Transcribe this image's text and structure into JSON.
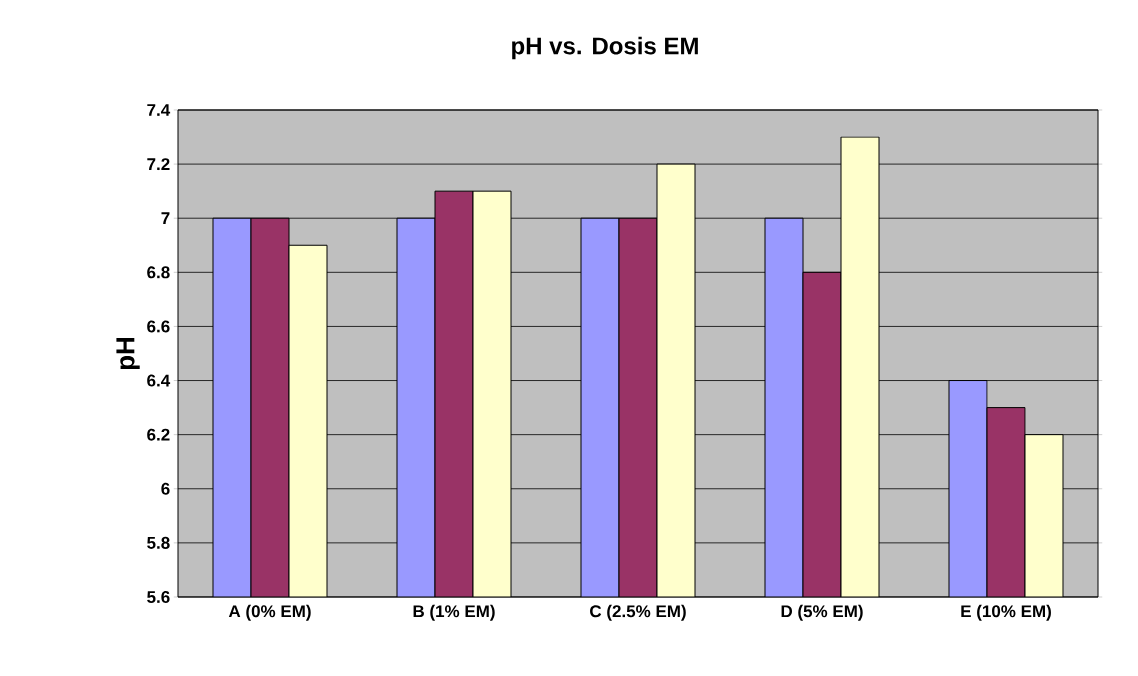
{
  "chart_data": {
    "type": "bar",
    "title": "pH vs. Dosis EM",
    "ylabel": "pH",
    "categories": [
      "A (0%  EM)",
      "B (1%  EM)",
      "C (2.5% EM)",
      "D (5%  EM)",
      "E (10% EM)"
    ],
    "series": [
      {
        "color": "#9999ff",
        "values": [
          7.0,
          7.0,
          7.0,
          7.0,
          6.4
        ]
      },
      {
        "color": "#993366",
        "values": [
          7.0,
          7.1,
          7.0,
          6.8,
          6.3
        ]
      },
      {
        "color": "#ffffcc",
        "values": [
          6.9,
          7.1,
          7.2,
          7.3,
          6.2
        ]
      }
    ],
    "ylim": [
      5.6,
      7.4
    ],
    "yticks": [
      5.6,
      5.8,
      6,
      6.2,
      6.4,
      6.6,
      6.8,
      7,
      7.2,
      7.4
    ],
    "grid": "y"
  }
}
